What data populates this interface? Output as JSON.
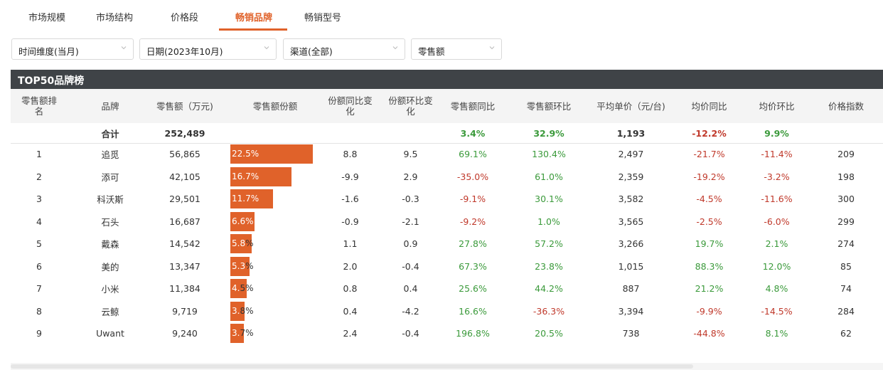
{
  "tabs": [
    {
      "label": "市场规模",
      "active": false
    },
    {
      "label": "市场结构",
      "active": false
    },
    {
      "label": "价格段",
      "active": false
    },
    {
      "label": "畅销品牌",
      "active": true
    },
    {
      "label": "畅销型号",
      "active": false
    }
  ],
  "filters": [
    {
      "value": "时间维度(当月)"
    },
    {
      "value": "日期(2023年10月)"
    },
    {
      "value": "渠道(全部)"
    },
    {
      "value": "零售额"
    }
  ],
  "panel_title": "TOP50品牌榜",
  "columns": [
    "零售额排名",
    "品牌",
    "零售额（万元)",
    "零售额份额",
    "份额同比变化",
    "份额环比变化",
    "零售额同比",
    "零售额环比",
    "平均单价（元/台)",
    "均价同比",
    "均价环比",
    "价格指数"
  ],
  "header_display": [
    "零售额排\n名",
    "品牌",
    "零售额（万元)",
    "零售额份额",
    "份额同比变\n化",
    "份额环比变\n化",
    "零售额同比",
    "零售额环比",
    "平均单价（元/台)",
    "均价同比",
    "均价环比",
    "价格指数"
  ],
  "total_row": {
    "rank": "",
    "brand": "合计",
    "sales": "252,489",
    "share": "",
    "share_yoy": "",
    "share_mom": "",
    "sales_yoy": "3.4%",
    "sales_mom": "32.9%",
    "avg_price": "1,193",
    "price_yoy": "-12.2%",
    "price_mom": "9.9%",
    "price_index": ""
  },
  "rows": [
    {
      "rank": "1",
      "brand": "追觅",
      "sales": "56,865",
      "share": "22.5%",
      "share_value": 22.5,
      "share_yoy": "8.8",
      "share_mom": "9.5",
      "sales_yoy": "69.1%",
      "sales_mom": "130.4%",
      "avg_price": "2,497",
      "price_yoy": "-21.7%",
      "price_mom": "-11.4%",
      "price_index": "209"
    },
    {
      "rank": "2",
      "brand": "添可",
      "sales": "42,105",
      "share": "16.7%",
      "share_value": 16.7,
      "share_yoy": "-9.9",
      "share_mom": "2.9",
      "sales_yoy": "-35.0%",
      "sales_mom": "61.0%",
      "avg_price": "2,359",
      "price_yoy": "-19.2%",
      "price_mom": "-3.2%",
      "price_index": "198"
    },
    {
      "rank": "3",
      "brand": "科沃斯",
      "sales": "29,501",
      "share": "11.7%",
      "share_value": 11.7,
      "share_yoy": "-1.6",
      "share_mom": "-0.3",
      "sales_yoy": "-9.1%",
      "sales_mom": "30.1%",
      "avg_price": "3,582",
      "price_yoy": "-4.5%",
      "price_mom": "-11.6%",
      "price_index": "300"
    },
    {
      "rank": "4",
      "brand": "石头",
      "sales": "16,687",
      "share": "6.6%",
      "share_value": 6.6,
      "share_yoy": "-0.9",
      "share_mom": "-2.1",
      "sales_yoy": "-9.2%",
      "sales_mom": "1.0%",
      "avg_price": "3,565",
      "price_yoy": "-2.5%",
      "price_mom": "-6.0%",
      "price_index": "299"
    },
    {
      "rank": "5",
      "brand": "戴森",
      "sales": "14,542",
      "share": "5.8%",
      "share_value": 5.8,
      "share_yoy": "1.1",
      "share_mom": "0.9",
      "sales_yoy": "27.8%",
      "sales_mom": "57.2%",
      "avg_price": "3,266",
      "price_yoy": "19.7%",
      "price_mom": "2.1%",
      "price_index": "274"
    },
    {
      "rank": "6",
      "brand": "美的",
      "sales": "13,347",
      "share": "5.3%",
      "share_value": 5.3,
      "share_yoy": "2.0",
      "share_mom": "-0.4",
      "sales_yoy": "67.3%",
      "sales_mom": "23.8%",
      "avg_price": "1,015",
      "price_yoy": "88.3%",
      "price_mom": "12.0%",
      "price_index": "85"
    },
    {
      "rank": "7",
      "brand": "小米",
      "sales": "11,384",
      "share": "4.5%",
      "share_value": 4.5,
      "share_yoy": "0.8",
      "share_mom": "0.4",
      "sales_yoy": "25.6%",
      "sales_mom": "44.2%",
      "avg_price": "887",
      "price_yoy": "21.2%",
      "price_mom": "4.8%",
      "price_index": "74"
    },
    {
      "rank": "8",
      "brand": "云鲸",
      "sales": "9,719",
      "share": "3.8%",
      "share_value": 3.8,
      "share_yoy": "0.4",
      "share_mom": "-4.2",
      "sales_yoy": "16.6%",
      "sales_mom": "-36.3%",
      "avg_price": "3,394",
      "price_yoy": "-9.9%",
      "price_mom": "-14.5%",
      "price_index": "284"
    },
    {
      "rank": "9",
      "brand": "Uwant",
      "sales": "9,240",
      "share": "3.7%",
      "share_value": 3.7,
      "share_yoy": "2.4",
      "share_mom": "-0.4",
      "sales_yoy": "196.8%",
      "sales_mom": "20.5%",
      "avg_price": "738",
      "price_yoy": "-44.8%",
      "price_mom": "8.1%",
      "price_index": "62"
    }
  ],
  "colors": {
    "accent": "#e0622a",
    "positive": "#3b9a3b",
    "negative": "#c0392b",
    "title_bar": "#3f4347",
    "header_bg": "#f4f4f4"
  },
  "icons": {
    "dropdown": "chevron-down-icon"
  }
}
